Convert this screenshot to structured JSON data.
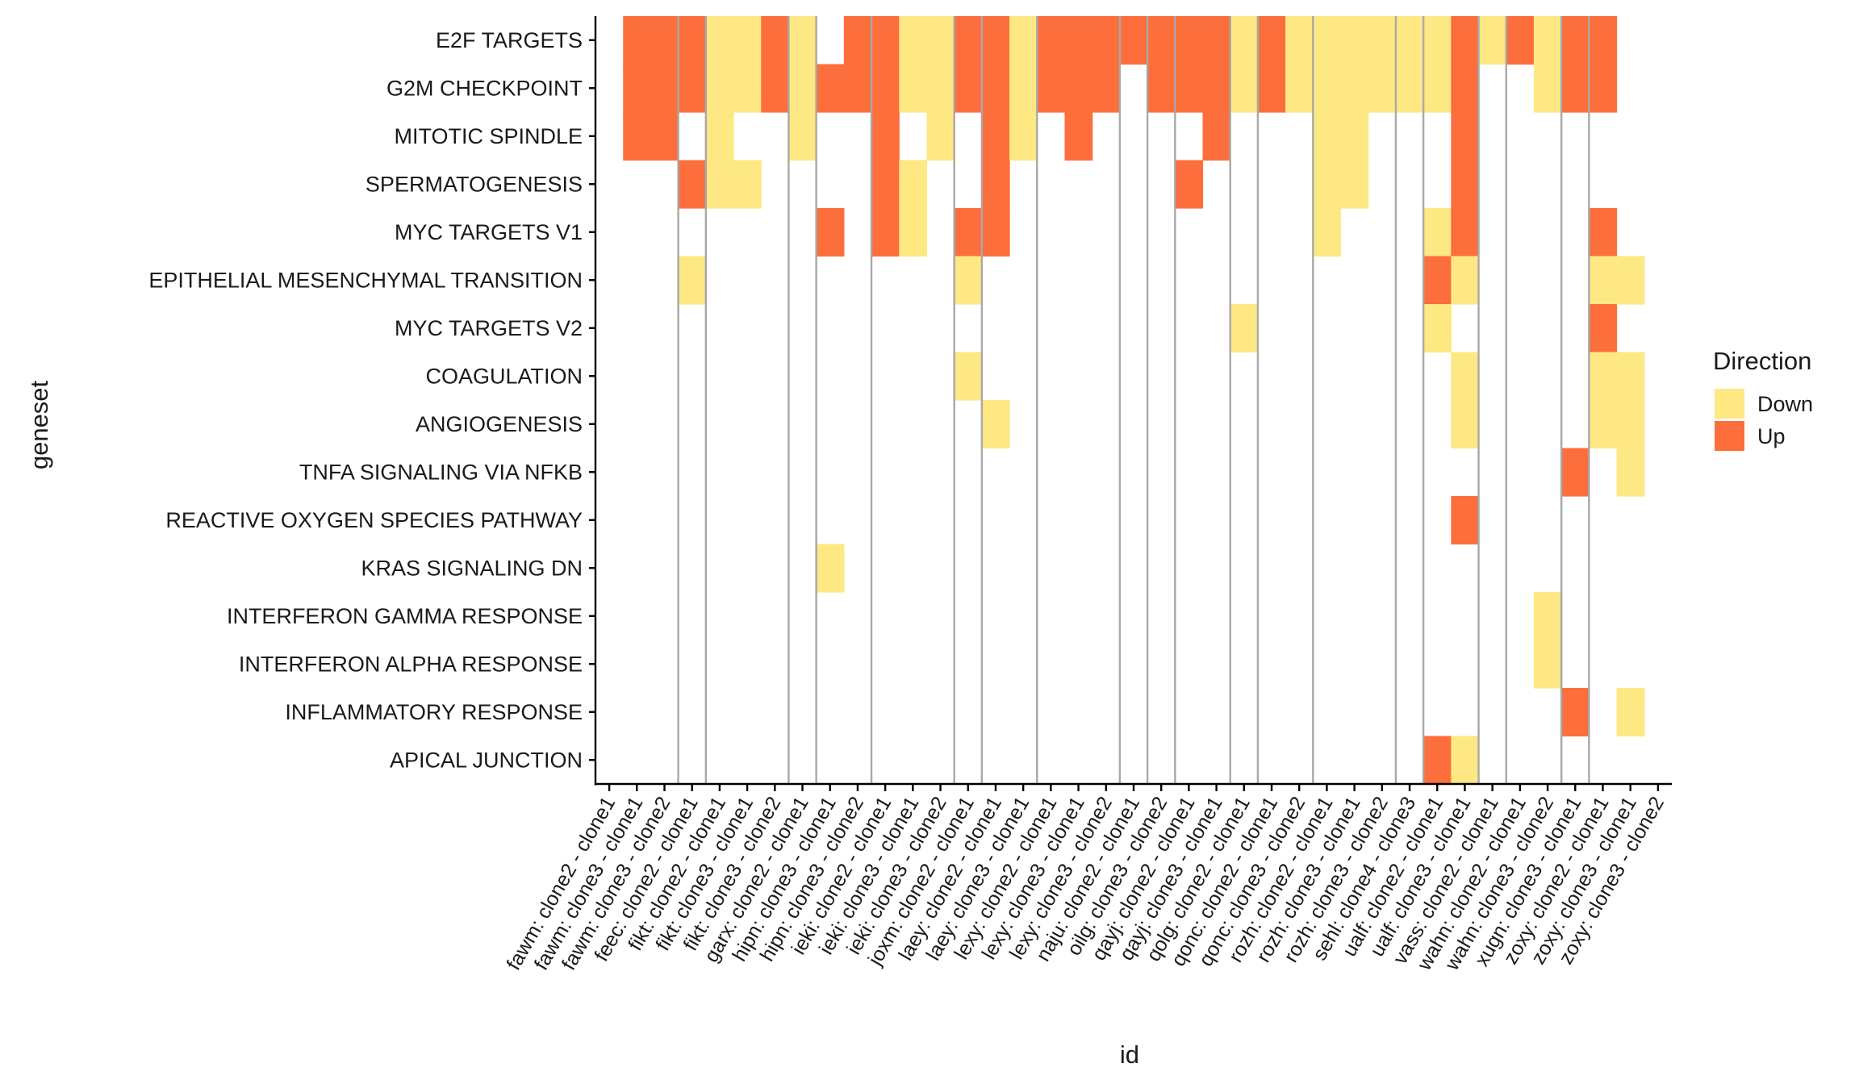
{
  "chart_data": {
    "type": "heatmap",
    "title": "",
    "xlabel": "id",
    "ylabel": "geneset",
    "legend": {
      "title": "Direction",
      "position": "right",
      "items": [
        {
          "label": "Down",
          "color": "#FEE883"
        },
        {
          "label": "Up",
          "color": "#FC6E3C"
        }
      ]
    },
    "colors": {
      "Down": "#FEE883",
      "Up": "#FC6E3C",
      "separator": "#A8A8A8",
      "axis": "#000000"
    },
    "grid": false,
    "x_categories": [
      "fawm: clone2 - clone1",
      "fawm: clone3 - clone1",
      "fawm: clone3 - clone2",
      "feec: clone2 - clone1",
      "fikt: clone2 - clone1",
      "fikt: clone3 - clone1",
      "fikt: clone3 - clone2",
      "garx: clone2 - clone1",
      "hipn: clone3 - clone1",
      "hipn: clone3 - clone2",
      "ieki: clone2 - clone1",
      "ieki: clone3 - clone1",
      "ieki: clone3 - clone2",
      "joxm: clone2 - clone1",
      "laey: clone2 - clone1",
      "laey: clone3 - clone1",
      "lexy: clone2 - clone1",
      "lexy: clone3 - clone1",
      "lexy: clone3 - clone2",
      "naju: clone2 - clone1",
      "oilg: clone3 - clone2",
      "qayj: clone2 - clone1",
      "qayj: clone3 - clone1",
      "qolg: clone2 - clone1",
      "qonc: clone2 - clone1",
      "qonc: clone3 - clone2",
      "rozh: clone2 - clone1",
      "rozh: clone3 - clone1",
      "rozh: clone3 - clone2",
      "sehl: clone4 - clone3",
      "ualf: clone2 - clone1",
      "ualf: clone3 - clone1",
      "vass: clone2 - clone1",
      "wahn: clone2 - clone1",
      "wahn: clone3 - clone2",
      "xugn: clone3 - clone1",
      "zoxy: clone2 - clone1",
      "zoxy: clone3 - clone1",
      "zoxy: clone3 - clone2"
    ],
    "y_categories": [
      "E2F TARGETS",
      "G2M CHECKPOINT",
      "MITOTIC SPINDLE",
      "SPERMATOGENESIS",
      "MYC TARGETS V1",
      "EPITHELIAL MESENCHYMAL TRANSITION",
      "MYC TARGETS V2",
      "COAGULATION",
      "ANGIOGENESIS",
      "TNFA SIGNALING VIA NFKB",
      "REACTIVE OXYGEN SPECIES PATHWAY",
      "KRAS SIGNALING DN",
      "INTERFERON GAMMA RESPONSE",
      "INTERFERON ALPHA RESPONSE",
      "INFLAMMATORY RESPONSE",
      "APICAL JUNCTION"
    ],
    "cells": [
      {
        "x": "fawm: clone3 - clone1",
        "y": "E2F TARGETS",
        "value": "Up"
      },
      {
        "x": "fawm: clone3 - clone1",
        "y": "G2M CHECKPOINT",
        "value": "Up"
      },
      {
        "x": "fawm: clone3 - clone1",
        "y": "MITOTIC SPINDLE",
        "value": "Up"
      },
      {
        "x": "fawm: clone3 - clone2",
        "y": "E2F TARGETS",
        "value": "Up"
      },
      {
        "x": "fawm: clone3 - clone2",
        "y": "G2M CHECKPOINT",
        "value": "Up"
      },
      {
        "x": "fawm: clone3 - clone2",
        "y": "MITOTIC SPINDLE",
        "value": "Up"
      },
      {
        "x": "feec: clone2 - clone1",
        "y": "E2F TARGETS",
        "value": "Up"
      },
      {
        "x": "feec: clone2 - clone1",
        "y": "G2M CHECKPOINT",
        "value": "Up"
      },
      {
        "x": "feec: clone2 - clone1",
        "y": "SPERMATOGENESIS",
        "value": "Up"
      },
      {
        "x": "feec: clone2 - clone1",
        "y": "EPITHELIAL MESENCHYMAL TRANSITION",
        "value": "Down"
      },
      {
        "x": "fikt: clone2 - clone1",
        "y": "E2F TARGETS",
        "value": "Down"
      },
      {
        "x": "fikt: clone2 - clone1",
        "y": "G2M CHECKPOINT",
        "value": "Down"
      },
      {
        "x": "fikt: clone2 - clone1",
        "y": "MITOTIC SPINDLE",
        "value": "Down"
      },
      {
        "x": "fikt: clone2 - clone1",
        "y": "SPERMATOGENESIS",
        "value": "Down"
      },
      {
        "x": "fikt: clone3 - clone1",
        "y": "E2F TARGETS",
        "value": "Down"
      },
      {
        "x": "fikt: clone3 - clone1",
        "y": "G2M CHECKPOINT",
        "value": "Down"
      },
      {
        "x": "fikt: clone3 - clone1",
        "y": "SPERMATOGENESIS",
        "value": "Down"
      },
      {
        "x": "fikt: clone3 - clone2",
        "y": "E2F TARGETS",
        "value": "Up"
      },
      {
        "x": "fikt: clone3 - clone2",
        "y": "G2M CHECKPOINT",
        "value": "Up"
      },
      {
        "x": "garx: clone2 - clone1",
        "y": "E2F TARGETS",
        "value": "Down"
      },
      {
        "x": "garx: clone2 - clone1",
        "y": "G2M CHECKPOINT",
        "value": "Down"
      },
      {
        "x": "garx: clone2 - clone1",
        "y": "MITOTIC SPINDLE",
        "value": "Down"
      },
      {
        "x": "hipn: clone3 - clone1",
        "y": "G2M CHECKPOINT",
        "value": "Up"
      },
      {
        "x": "hipn: clone3 - clone1",
        "y": "MYC TARGETS V1",
        "value": "Up"
      },
      {
        "x": "hipn: clone3 - clone1",
        "y": "KRAS SIGNALING DN",
        "value": "Down"
      },
      {
        "x": "hipn: clone3 - clone2",
        "y": "E2F TARGETS",
        "value": "Up"
      },
      {
        "x": "hipn: clone3 - clone2",
        "y": "G2M CHECKPOINT",
        "value": "Up"
      },
      {
        "x": "ieki: clone2 - clone1",
        "y": "E2F TARGETS",
        "value": "Up"
      },
      {
        "x": "ieki: clone2 - clone1",
        "y": "G2M CHECKPOINT",
        "value": "Up"
      },
      {
        "x": "ieki: clone2 - clone1",
        "y": "MITOTIC SPINDLE",
        "value": "Up"
      },
      {
        "x": "ieki: clone2 - clone1",
        "y": "SPERMATOGENESIS",
        "value": "Up"
      },
      {
        "x": "ieki: clone2 - clone1",
        "y": "MYC TARGETS V1",
        "value": "Up"
      },
      {
        "x": "ieki: clone3 - clone1",
        "y": "E2F TARGETS",
        "value": "Down"
      },
      {
        "x": "ieki: clone3 - clone1",
        "y": "G2M CHECKPOINT",
        "value": "Down"
      },
      {
        "x": "ieki: clone3 - clone1",
        "y": "SPERMATOGENESIS",
        "value": "Down"
      },
      {
        "x": "ieki: clone3 - clone1",
        "y": "MYC TARGETS V1",
        "value": "Down"
      },
      {
        "x": "ieki: clone3 - clone2",
        "y": "E2F TARGETS",
        "value": "Down"
      },
      {
        "x": "ieki: clone3 - clone2",
        "y": "G2M CHECKPOINT",
        "value": "Down"
      },
      {
        "x": "ieki: clone3 - clone2",
        "y": "MITOTIC SPINDLE",
        "value": "Down"
      },
      {
        "x": "joxm: clone2 - clone1",
        "y": "E2F TARGETS",
        "value": "Up"
      },
      {
        "x": "joxm: clone2 - clone1",
        "y": "G2M CHECKPOINT",
        "value": "Up"
      },
      {
        "x": "joxm: clone2 - clone1",
        "y": "MYC TARGETS V1",
        "value": "Up"
      },
      {
        "x": "joxm: clone2 - clone1",
        "y": "EPITHELIAL MESENCHYMAL TRANSITION",
        "value": "Down"
      },
      {
        "x": "joxm: clone2 - clone1",
        "y": "COAGULATION",
        "value": "Down"
      },
      {
        "x": "laey: clone2 - clone1",
        "y": "E2F TARGETS",
        "value": "Up"
      },
      {
        "x": "laey: clone2 - clone1",
        "y": "G2M CHECKPOINT",
        "value": "Up"
      },
      {
        "x": "laey: clone2 - clone1",
        "y": "MITOTIC SPINDLE",
        "value": "Up"
      },
      {
        "x": "laey: clone2 - clone1",
        "y": "SPERMATOGENESIS",
        "value": "Up"
      },
      {
        "x": "laey: clone2 - clone1",
        "y": "MYC TARGETS V1",
        "value": "Up"
      },
      {
        "x": "laey: clone2 - clone1",
        "y": "ANGIOGENESIS",
        "value": "Down"
      },
      {
        "x": "laey: clone3 - clone1",
        "y": "E2F TARGETS",
        "value": "Down"
      },
      {
        "x": "laey: clone3 - clone1",
        "y": "G2M CHECKPOINT",
        "value": "Down"
      },
      {
        "x": "laey: clone3 - clone1",
        "y": "MITOTIC SPINDLE",
        "value": "Down"
      },
      {
        "x": "lexy: clone2 - clone1",
        "y": "E2F TARGETS",
        "value": "Up"
      },
      {
        "x": "lexy: clone2 - clone1",
        "y": "G2M CHECKPOINT",
        "value": "Up"
      },
      {
        "x": "lexy: clone3 - clone1",
        "y": "E2F TARGETS",
        "value": "Up"
      },
      {
        "x": "lexy: clone3 - clone1",
        "y": "G2M CHECKPOINT",
        "value": "Up"
      },
      {
        "x": "lexy: clone3 - clone1",
        "y": "MITOTIC SPINDLE",
        "value": "Up"
      },
      {
        "x": "lexy: clone3 - clone2",
        "y": "E2F TARGETS",
        "value": "Up"
      },
      {
        "x": "lexy: clone3 - clone2",
        "y": "G2M CHECKPOINT",
        "value": "Up"
      },
      {
        "x": "naju: clone2 - clone1",
        "y": "E2F TARGETS",
        "value": "Up"
      },
      {
        "x": "oilg: clone3 - clone2",
        "y": "E2F TARGETS",
        "value": "Up"
      },
      {
        "x": "oilg: clone3 - clone2",
        "y": "G2M CHECKPOINT",
        "value": "Up"
      },
      {
        "x": "qayj: clone2 - clone1",
        "y": "E2F TARGETS",
        "value": "Up"
      },
      {
        "x": "qayj: clone2 - clone1",
        "y": "G2M CHECKPOINT",
        "value": "Up"
      },
      {
        "x": "qayj: clone2 - clone1",
        "y": "SPERMATOGENESIS",
        "value": "Up"
      },
      {
        "x": "qayj: clone3 - clone1",
        "y": "E2F TARGETS",
        "value": "Up"
      },
      {
        "x": "qayj: clone3 - clone1",
        "y": "G2M CHECKPOINT",
        "value": "Up"
      },
      {
        "x": "qayj: clone3 - clone1",
        "y": "MITOTIC SPINDLE",
        "value": "Up"
      },
      {
        "x": "qolg: clone2 - clone1",
        "y": "E2F TARGETS",
        "value": "Down"
      },
      {
        "x": "qolg: clone2 - clone1",
        "y": "G2M CHECKPOINT",
        "value": "Down"
      },
      {
        "x": "qolg: clone2 - clone1",
        "y": "MYC TARGETS V2",
        "value": "Down"
      },
      {
        "x": "qonc: clone2 - clone1",
        "y": "E2F TARGETS",
        "value": "Up"
      },
      {
        "x": "qonc: clone2 - clone1",
        "y": "G2M CHECKPOINT",
        "value": "Up"
      },
      {
        "x": "qonc: clone3 - clone2",
        "y": "E2F TARGETS",
        "value": "Down"
      },
      {
        "x": "qonc: clone3 - clone2",
        "y": "G2M CHECKPOINT",
        "value": "Down"
      },
      {
        "x": "rozh: clone2 - clone1",
        "y": "E2F TARGETS",
        "value": "Down"
      },
      {
        "x": "rozh: clone2 - clone1",
        "y": "G2M CHECKPOINT",
        "value": "Down"
      },
      {
        "x": "rozh: clone2 - clone1",
        "y": "MITOTIC SPINDLE",
        "value": "Down"
      },
      {
        "x": "rozh: clone2 - clone1",
        "y": "SPERMATOGENESIS",
        "value": "Down"
      },
      {
        "x": "rozh: clone2 - clone1",
        "y": "MYC TARGETS V1",
        "value": "Down"
      },
      {
        "x": "rozh: clone3 - clone1",
        "y": "E2F TARGETS",
        "value": "Down"
      },
      {
        "x": "rozh: clone3 - clone1",
        "y": "G2M CHECKPOINT",
        "value": "Down"
      },
      {
        "x": "rozh: clone3 - clone1",
        "y": "MITOTIC SPINDLE",
        "value": "Down"
      },
      {
        "x": "rozh: clone3 - clone1",
        "y": "SPERMATOGENESIS",
        "value": "Down"
      },
      {
        "x": "rozh: clone3 - clone2",
        "y": "E2F TARGETS",
        "value": "Down"
      },
      {
        "x": "rozh: clone3 - clone2",
        "y": "G2M CHECKPOINT",
        "value": "Down"
      },
      {
        "x": "sehl: clone4 - clone3",
        "y": "E2F TARGETS",
        "value": "Down"
      },
      {
        "x": "sehl: clone4 - clone3",
        "y": "G2M CHECKPOINT",
        "value": "Down"
      },
      {
        "x": "ualf: clone2 - clone1",
        "y": "E2F TARGETS",
        "value": "Down"
      },
      {
        "x": "ualf: clone2 - clone1",
        "y": "G2M CHECKPOINT",
        "value": "Down"
      },
      {
        "x": "ualf: clone2 - clone1",
        "y": "MYC TARGETS V1",
        "value": "Down"
      },
      {
        "x": "ualf: clone2 - clone1",
        "y": "EPITHELIAL MESENCHYMAL TRANSITION",
        "value": "Up"
      },
      {
        "x": "ualf: clone2 - clone1",
        "y": "MYC TARGETS V2",
        "value": "Down"
      },
      {
        "x": "ualf: clone2 - clone1",
        "y": "APICAL JUNCTION",
        "value": "Up"
      },
      {
        "x": "ualf: clone3 - clone1",
        "y": "E2F TARGETS",
        "value": "Up"
      },
      {
        "x": "ualf: clone3 - clone1",
        "y": "G2M CHECKPOINT",
        "value": "Up"
      },
      {
        "x": "ualf: clone3 - clone1",
        "y": "MITOTIC SPINDLE",
        "value": "Up"
      },
      {
        "x": "ualf: clone3 - clone1",
        "y": "SPERMATOGENESIS",
        "value": "Up"
      },
      {
        "x": "ualf: clone3 - clone1",
        "y": "MYC TARGETS V1",
        "value": "Up"
      },
      {
        "x": "ualf: clone3 - clone1",
        "y": "EPITHELIAL MESENCHYMAL TRANSITION",
        "value": "Down"
      },
      {
        "x": "ualf: clone3 - clone1",
        "y": "COAGULATION",
        "value": "Down"
      },
      {
        "x": "ualf: clone3 - clone1",
        "y": "ANGIOGENESIS",
        "value": "Down"
      },
      {
        "x": "ualf: clone3 - clone1",
        "y": "REACTIVE OXYGEN SPECIES PATHWAY",
        "value": "Up"
      },
      {
        "x": "ualf: clone3 - clone1",
        "y": "APICAL JUNCTION",
        "value": "Down"
      },
      {
        "x": "vass: clone2 - clone1",
        "y": "E2F TARGETS",
        "value": "Down"
      },
      {
        "x": "wahn: clone2 - clone1",
        "y": "E2F TARGETS",
        "value": "Up"
      },
      {
        "x": "wahn: clone3 - clone2",
        "y": "E2F TARGETS",
        "value": "Down"
      },
      {
        "x": "wahn: clone3 - clone2",
        "y": "G2M CHECKPOINT",
        "value": "Down"
      },
      {
        "x": "wahn: clone3 - clone2",
        "y": "INTERFERON GAMMA RESPONSE",
        "value": "Down"
      },
      {
        "x": "wahn: clone3 - clone2",
        "y": "INTERFERON ALPHA RESPONSE",
        "value": "Down"
      },
      {
        "x": "xugn: clone3 - clone1",
        "y": "E2F TARGETS",
        "value": "Up"
      },
      {
        "x": "xugn: clone3 - clone1",
        "y": "G2M CHECKPOINT",
        "value": "Up"
      },
      {
        "x": "xugn: clone3 - clone1",
        "y": "TNFA SIGNALING VIA NFKB",
        "value": "Up"
      },
      {
        "x": "xugn: clone3 - clone1",
        "y": "INFLAMMATORY RESPONSE",
        "value": "Up"
      },
      {
        "x": "zoxy: clone2 - clone1",
        "y": "E2F TARGETS",
        "value": "Up"
      },
      {
        "x": "zoxy: clone2 - clone1",
        "y": "G2M CHECKPOINT",
        "value": "Up"
      },
      {
        "x": "zoxy: clone2 - clone1",
        "y": "MYC TARGETS V1",
        "value": "Up"
      },
      {
        "x": "zoxy: clone2 - clone1",
        "y": "EPITHELIAL MESENCHYMAL TRANSITION",
        "value": "Down"
      },
      {
        "x": "zoxy: clone2 - clone1",
        "y": "MYC TARGETS V2",
        "value": "Up"
      },
      {
        "x": "zoxy: clone2 - clone1",
        "y": "COAGULATION",
        "value": "Down"
      },
      {
        "x": "zoxy: clone2 - clone1",
        "y": "ANGIOGENESIS",
        "value": "Down"
      },
      {
        "x": "zoxy: clone3 - clone1",
        "y": "EPITHELIAL MESENCHYMAL TRANSITION",
        "value": "Down"
      },
      {
        "x": "zoxy: clone3 - clone1",
        "y": "COAGULATION",
        "value": "Down"
      },
      {
        "x": "zoxy: clone3 - clone1",
        "y": "ANGIOGENESIS",
        "value": "Down"
      },
      {
        "x": "zoxy: clone3 - clone1",
        "y": "TNFA SIGNALING VIA NFKB",
        "value": "Down"
      },
      {
        "x": "zoxy: clone3 - clone1",
        "y": "INFLAMMATORY RESPONSE",
        "value": "Down"
      }
    ]
  }
}
